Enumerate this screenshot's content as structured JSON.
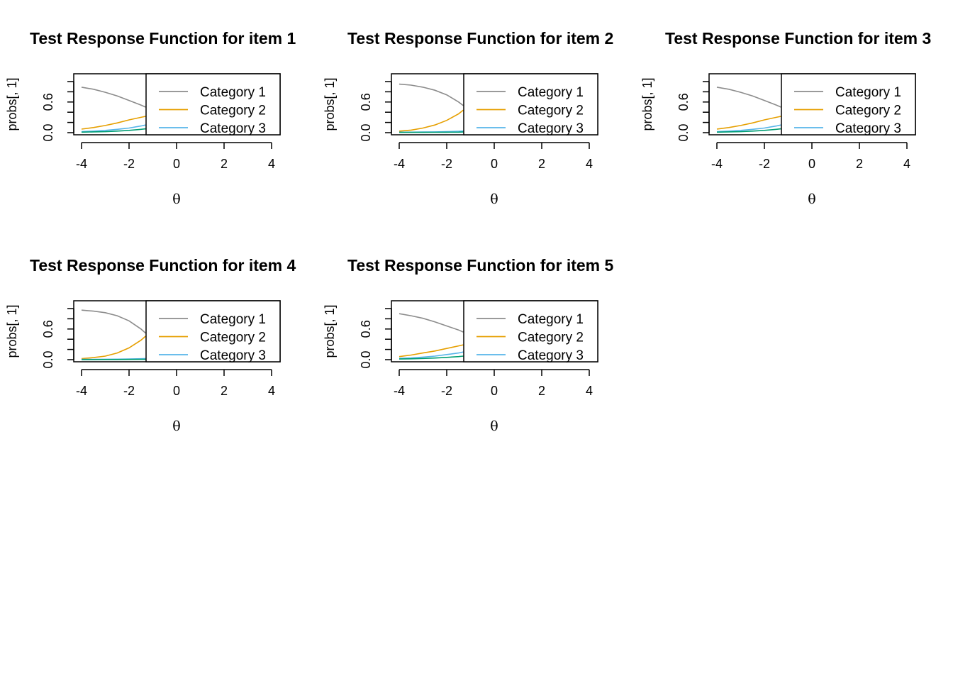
{
  "chart_data": [
    {
      "type": "line",
      "title": "Test Response Function for item 1",
      "xlabel": "θ",
      "ylabel": "probs[, 1]",
      "xlim": [
        -4,
        4
      ],
      "ylim": [
        0,
        1
      ],
      "xticks": [
        "-4",
        "-2",
        "0",
        "2",
        "4"
      ],
      "yticks": [
        "0.0",
        "0.6"
      ],
      "legend_position": "right",
      "x": [
        -4,
        -3.5,
        -3,
        -2.5,
        -2,
        -1.5,
        -1.3
      ],
      "series": [
        {
          "name": "Category 1",
          "color": "#8c8c8c",
          "values": [
            0.89,
            0.85,
            0.79,
            0.72,
            0.63,
            0.54,
            0.5
          ]
        },
        {
          "name": "Category 2",
          "color": "#e69f00",
          "values": [
            0.07,
            0.1,
            0.14,
            0.19,
            0.25,
            0.3,
            0.32
          ]
        },
        {
          "name": "Category 3",
          "color": "#56b4e9",
          "values": [
            0.02,
            0.03,
            0.045,
            0.065,
            0.09,
            0.13,
            0.15
          ]
        },
        {
          "name": "",
          "color": "#009e73",
          "values": [
            0.01,
            0.015,
            0.02,
            0.03,
            0.045,
            0.065,
            0.075
          ]
        }
      ]
    },
    {
      "type": "line",
      "title": "Test Response Function for item 2",
      "xlabel": "θ",
      "ylabel": "probs[, 1]",
      "xlim": [
        -4,
        4
      ],
      "ylim": [
        0,
        1
      ],
      "xticks": [
        "-4",
        "-2",
        "0",
        "2",
        "4"
      ],
      "yticks": [
        "0.0",
        "0.6"
      ],
      "legend_position": "right",
      "x": [
        -4,
        -3.5,
        -3,
        -2.5,
        -2,
        -1.5,
        -1.3
      ],
      "series": [
        {
          "name": "Category 1",
          "color": "#8c8c8c",
          "values": [
            0.95,
            0.93,
            0.89,
            0.83,
            0.74,
            0.6,
            0.53
          ]
        },
        {
          "name": "Category 2",
          "color": "#e69f00",
          "values": [
            0.03,
            0.05,
            0.09,
            0.15,
            0.24,
            0.37,
            0.44
          ]
        },
        {
          "name": "Category 3",
          "color": "#56b4e9",
          "values": [
            0.01,
            0.01,
            0.012,
            0.015,
            0.02,
            0.028,
            0.032
          ]
        },
        {
          "name": "",
          "color": "#009e73",
          "values": [
            0.005,
            0.005,
            0.006,
            0.007,
            0.008,
            0.01,
            0.012
          ]
        }
      ]
    },
    {
      "type": "line",
      "title": "Test Response Function for item 3",
      "xlabel": "θ",
      "ylabel": "probs[, 1]",
      "xlim": [
        -4,
        4
      ],
      "ylim": [
        0,
        1
      ],
      "xticks": [
        "-4",
        "-2",
        "0",
        "2",
        "4"
      ],
      "yticks": [
        "0.0",
        "0.6"
      ],
      "legend_position": "right",
      "x": [
        -4,
        -3.5,
        -3,
        -2.5,
        -2,
        -1.5,
        -1.3
      ],
      "series": [
        {
          "name": "Category 1",
          "color": "#8c8c8c",
          "values": [
            0.89,
            0.85,
            0.79,
            0.72,
            0.63,
            0.54,
            0.5
          ]
        },
        {
          "name": "Category 2",
          "color": "#e69f00",
          "values": [
            0.07,
            0.1,
            0.14,
            0.19,
            0.25,
            0.3,
            0.32
          ]
        },
        {
          "name": "Category 3",
          "color": "#56b4e9",
          "values": [
            0.02,
            0.03,
            0.045,
            0.065,
            0.09,
            0.13,
            0.15
          ]
        },
        {
          "name": "",
          "color": "#009e73",
          "values": [
            0.01,
            0.015,
            0.02,
            0.03,
            0.045,
            0.065,
            0.075
          ]
        }
      ]
    },
    {
      "type": "line",
      "title": "Test Response Function for item 4",
      "xlabel": "θ",
      "ylabel": "probs[, 1]",
      "xlim": [
        -4,
        4
      ],
      "ylim": [
        0,
        1
      ],
      "xticks": [
        "-4",
        "-2",
        "0",
        "2",
        "4"
      ],
      "yticks": [
        "0.0",
        "0.6"
      ],
      "legend_position": "right",
      "x": [
        -4,
        -3.5,
        -3,
        -2.5,
        -2,
        -1.5,
        -1.3
      ],
      "series": [
        {
          "name": "Category 1",
          "color": "#8c8c8c",
          "values": [
            0.97,
            0.95,
            0.92,
            0.86,
            0.76,
            0.6,
            0.52
          ]
        },
        {
          "name": "Category 2",
          "color": "#e69f00",
          "values": [
            0.02,
            0.04,
            0.07,
            0.13,
            0.23,
            0.38,
            0.46
          ]
        },
        {
          "name": "Category 3",
          "color": "#56b4e9",
          "values": [
            0.005,
            0.006,
            0.008,
            0.01,
            0.013,
            0.018,
            0.022
          ]
        },
        {
          "name": "",
          "color": "#009e73",
          "values": [
            0.002,
            0.002,
            0.003,
            0.003,
            0.004,
            0.005,
            0.006
          ]
        }
      ]
    },
    {
      "type": "line",
      "title": "Test Response Function for item 5",
      "xlabel": "θ",
      "ylabel": "probs[, 1]",
      "xlim": [
        -4,
        4
      ],
      "ylim": [
        0,
        1
      ],
      "xticks": [
        "-4",
        "-2",
        "0",
        "2",
        "4"
      ],
      "yticks": [
        "0.0",
        "0.6"
      ],
      "legend_position": "right",
      "x": [
        -4,
        -3.5,
        -3,
        -2.5,
        -2,
        -1.5,
        -1.3
      ],
      "series": [
        {
          "name": "Category 1",
          "color": "#8c8c8c",
          "values": [
            0.9,
            0.86,
            0.81,
            0.74,
            0.66,
            0.58,
            0.54
          ]
        },
        {
          "name": "Category 2",
          "color": "#e69f00",
          "values": [
            0.06,
            0.09,
            0.13,
            0.17,
            0.22,
            0.27,
            0.29
          ]
        },
        {
          "name": "Category 3",
          "color": "#56b4e9",
          "values": [
            0.025,
            0.035,
            0.05,
            0.07,
            0.1,
            0.13,
            0.15
          ]
        },
        {
          "name": "",
          "color": "#009e73",
          "values": [
            0.012,
            0.017,
            0.024,
            0.032,
            0.045,
            0.06,
            0.07
          ]
        }
      ]
    }
  ]
}
